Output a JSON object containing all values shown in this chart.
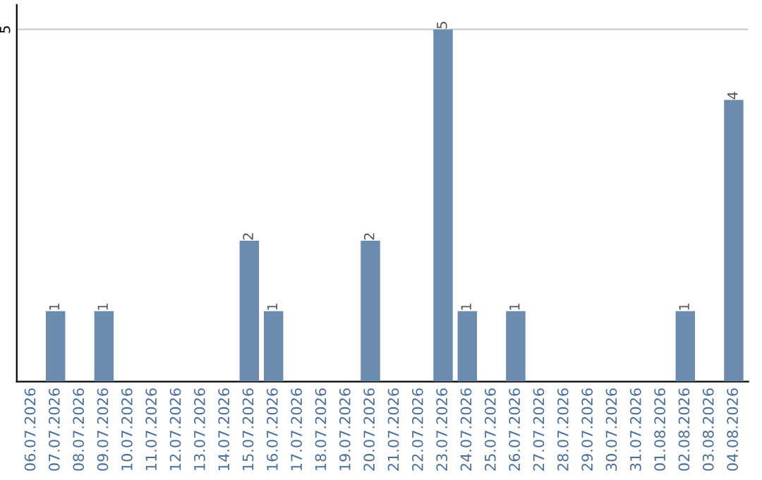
{
  "chart_data": {
    "type": "bar",
    "categories": [
      "06.07.2026",
      "07.07.2026",
      "08.07.2026",
      "09.07.2026",
      "10.07.2026",
      "11.07.2026",
      "12.07.2026",
      "13.07.2026",
      "14.07.2026",
      "15.07.2026",
      "16.07.2026",
      "17.07.2026",
      "18.07.2026",
      "19.07.2026",
      "20.07.2026",
      "21.07.2026",
      "22.07.2026",
      "23.07.2026",
      "24.07.2026",
      "25.07.2026",
      "26.07.2026",
      "27.07.2026",
      "28.07.2026",
      "29.07.2026",
      "30.07.2026",
      "31.07.2026",
      "01.08.2026",
      "02.08.2026",
      "03.08.2026",
      "04.08.2026"
    ],
    "values": [
      0,
      1,
      0,
      1,
      0,
      0,
      0,
      0,
      0,
      2,
      1,
      0,
      0,
      0,
      2,
      0,
      0,
      5,
      1,
      0,
      1,
      0,
      0,
      0,
      0,
      0,
      0,
      1,
      0,
      4
    ],
    "value_labels": [
      null,
      "1",
      null,
      "1",
      null,
      null,
      null,
      null,
      null,
      "2",
      "1",
      null,
      null,
      null,
      "2",
      null,
      null,
      "5",
      "1",
      null,
      "1",
      null,
      null,
      null,
      null,
      null,
      null,
      "1",
      null,
      "4"
    ],
    "color": "#6b8cae",
    "ylim": [
      0,
      5.35
    ],
    "yticks": [
      5
    ],
    "grid": "y"
  }
}
